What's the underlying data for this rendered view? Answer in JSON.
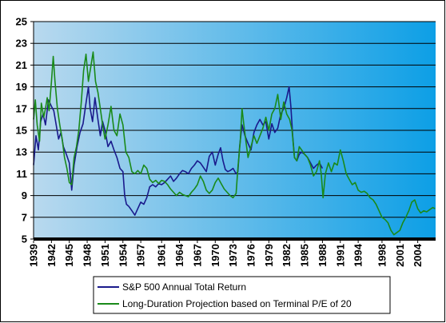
{
  "chart_data": {
    "type": "line",
    "title": "",
    "xlabel": "",
    "ylabel": "",
    "xlim": [
      1939,
      2006.5
    ],
    "ylim": [
      5,
      25
    ],
    "y_ticks": [
      5,
      7,
      9,
      11,
      13,
      15,
      17,
      19,
      21,
      23,
      25
    ],
    "x_ticks": [
      "1939",
      "1942",
      "1945",
      "1948",
      "1951",
      "1954",
      "1957",
      "1961",
      "1964",
      "1967",
      "1970",
      "1973",
      "1976",
      "1979",
      "1982",
      "1985",
      "1988",
      "1991",
      "1994",
      "1998",
      "2001",
      "2004"
    ],
    "x_tick_values": [
      1939,
      1942,
      1945,
      1948,
      1951,
      1954,
      1957,
      1960.5,
      1963.5,
      1966.5,
      1969.5,
      1972.5,
      1975.5,
      1978.5,
      1981.5,
      1984.5,
      1987.5,
      1990.5,
      1993.5,
      1997.5,
      2000.5,
      2003.5
    ],
    "grid": "horizontal",
    "legend_position": "bottom",
    "series": [
      {
        "name": "S&P 500 Annual Total Return",
        "color": "#1a1a8c",
        "points": [
          [
            1939,
            11.8
          ],
          [
            1939.4,
            14.5
          ],
          [
            1939.8,
            13.2
          ],
          [
            1940.2,
            15.8
          ],
          [
            1940.6,
            16.5
          ],
          [
            1941,
            15.5
          ],
          [
            1941.5,
            17.8
          ],
          [
            1942,
            17.2
          ],
          [
            1942.4,
            16.8
          ],
          [
            1942.8,
            15.5
          ],
          [
            1943.2,
            14.2
          ],
          [
            1943.6,
            14.8
          ],
          [
            1944,
            13.5
          ],
          [
            1944.5,
            12.8
          ],
          [
            1945,
            12.0
          ],
          [
            1945.4,
            9.5
          ],
          [
            1945.8,
            11.8
          ],
          [
            1946.3,
            13.5
          ],
          [
            1946.8,
            14.8
          ],
          [
            1947.3,
            15.6
          ],
          [
            1947.8,
            17.5
          ],
          [
            1948.2,
            19.0
          ],
          [
            1948.5,
            17.0
          ],
          [
            1948.9,
            15.8
          ],
          [
            1949.3,
            18.0
          ],
          [
            1949.8,
            16.0
          ],
          [
            1950.2,
            14.5
          ],
          [
            1950.6,
            15.8
          ],
          [
            1951,
            15.0
          ],
          [
            1951.5,
            13.5
          ],
          [
            1952,
            14.0
          ],
          [
            1952.5,
            13.2
          ],
          [
            1953,
            12.5
          ],
          [
            1953.5,
            11.5
          ],
          [
            1954,
            11.2
          ],
          [
            1954.3,
            9.0
          ],
          [
            1954.6,
            8.2
          ],
          [
            1955,
            8.0
          ],
          [
            1955.5,
            7.6
          ],
          [
            1956,
            7.2
          ],
          [
            1956.5,
            7.8
          ],
          [
            1957,
            8.4
          ],
          [
            1957.5,
            8.2
          ],
          [
            1958,
            8.8
          ],
          [
            1958.5,
            9.8
          ],
          [
            1959,
            10.0
          ],
          [
            1959.5,
            9.8
          ],
          [
            1960,
            10.1
          ],
          [
            1960.5,
            10.0
          ],
          [
            1961,
            10.2
          ],
          [
            1961.5,
            10.5
          ],
          [
            1962,
            10.8
          ],
          [
            1962.5,
            10.3
          ],
          [
            1963,
            10.6
          ],
          [
            1963.5,
            11.0
          ],
          [
            1964,
            11.3
          ],
          [
            1964.5,
            11.2
          ],
          [
            1965,
            11.0
          ],
          [
            1965.5,
            11.5
          ],
          [
            1966,
            11.8
          ],
          [
            1966.5,
            12.2
          ],
          [
            1967,
            12.0
          ],
          [
            1967.5,
            11.6
          ],
          [
            1968,
            11.2
          ],
          [
            1968.5,
            12.6
          ],
          [
            1969,
            13.0
          ],
          [
            1969.5,
            11.8
          ],
          [
            1970,
            12.8
          ],
          [
            1970.4,
            13.4
          ],
          [
            1970.8,
            12.2
          ],
          [
            1971.2,
            11.4
          ],
          [
            1971.6,
            11.2
          ],
          [
            1972,
            11.3
          ],
          [
            1972.5,
            11.5
          ],
          [
            1973,
            11.0
          ],
          [
            1973.3,
            11.2
          ],
          [
            1973.6,
            13.5
          ],
          [
            1974,
            15.5
          ],
          [
            1974.5,
            14.5
          ],
          [
            1975,
            13.8
          ],
          [
            1975.5,
            13.2
          ],
          [
            1976,
            14.8
          ],
          [
            1976.5,
            15.5
          ],
          [
            1977,
            16.0
          ],
          [
            1977.5,
            15.5
          ],
          [
            1978,
            15.8
          ],
          [
            1978.5,
            14.2
          ],
          [
            1979,
            15.6
          ],
          [
            1979.5,
            14.8
          ],
          [
            1980,
            15.2
          ],
          [
            1980.5,
            16.5
          ],
          [
            1981,
            17.0
          ],
          [
            1981.5,
            18.0
          ],
          [
            1981.9,
            19.0
          ],
          [
            1982.2,
            17.2
          ],
          [
            1982.5,
            14.5
          ],
          [
            1982.8,
            12.5
          ],
          [
            1983.2,
            12.2
          ],
          [
            1983.6,
            12.8
          ],
          [
            1984,
            13.0
          ],
          [
            1984.5,
            12.8
          ],
          [
            1985,
            12.5
          ],
          [
            1985.5,
            12.0
          ],
          [
            1986,
            11.5
          ],
          [
            1986.5,
            11.8
          ],
          [
            1987,
            12.0
          ],
          [
            1987.5,
            11.5
          ]
        ]
      },
      {
        "name": "Long-Duration Projection based on Terminal P/E of 20",
        "color": "#1a8a1a",
        "points": [
          [
            1939,
            16.0
          ],
          [
            1939.3,
            17.8
          ],
          [
            1939.6,
            15.5
          ],
          [
            1940,
            14.0
          ],
          [
            1940.3,
            17.5
          ],
          [
            1940.7,
            16.2
          ],
          [
            1941,
            17.0
          ],
          [
            1941.3,
            18.0
          ],
          [
            1941.6,
            16.8
          ],
          [
            1942,
            19.5
          ],
          [
            1942.3,
            21.8
          ],
          [
            1942.6,
            19.5
          ],
          [
            1943,
            17.0
          ],
          [
            1943.4,
            15.5
          ],
          [
            1943.8,
            14.2
          ],
          [
            1944.2,
            12.5
          ],
          [
            1944.6,
            11.5
          ],
          [
            1945,
            10.2
          ],
          [
            1945.4,
            10.0
          ],
          [
            1945.8,
            12.5
          ],
          [
            1946.2,
            13.5
          ],
          [
            1946.6,
            15.0
          ],
          [
            1947,
            17.5
          ],
          [
            1947.4,
            20.5
          ],
          [
            1947.8,
            22.0
          ],
          [
            1948.2,
            19.5
          ],
          [
            1948.6,
            20.8
          ],
          [
            1949,
            22.2
          ],
          [
            1949.4,
            19.5
          ],
          [
            1949.8,
            18.5
          ],
          [
            1950.2,
            17.0
          ],
          [
            1950.6,
            15.5
          ],
          [
            1951,
            14.2
          ],
          [
            1951.5,
            15.5
          ],
          [
            1952,
            17.2
          ],
          [
            1952.5,
            15.0
          ],
          [
            1953,
            14.5
          ],
          [
            1953.5,
            16.5
          ],
          [
            1954,
            15.5
          ],
          [
            1954.5,
            13.0
          ],
          [
            1955,
            12.5
          ],
          [
            1955.5,
            11.2
          ],
          [
            1956,
            11.0
          ],
          [
            1956.5,
            11.3
          ],
          [
            1957,
            11.0
          ],
          [
            1957.5,
            11.8
          ],
          [
            1958,
            11.5
          ],
          [
            1958.5,
            10.5
          ],
          [
            1959,
            10.2
          ],
          [
            1959.5,
            10.4
          ],
          [
            1960,
            10.1
          ],
          [
            1960.5,
            10.4
          ],
          [
            1961,
            10.3
          ],
          [
            1961.5,
            10.0
          ],
          [
            1962,
            9.6
          ],
          [
            1962.5,
            9.3
          ],
          [
            1963,
            9.0
          ],
          [
            1963.5,
            9.3
          ],
          [
            1964,
            9.1
          ],
          [
            1964.5,
            9.0
          ],
          [
            1965,
            8.9
          ],
          [
            1965.5,
            9.3
          ],
          [
            1966,
            9.6
          ],
          [
            1966.5,
            10.0
          ],
          [
            1967,
            10.8
          ],
          [
            1967.5,
            10.3
          ],
          [
            1968,
            9.5
          ],
          [
            1968.5,
            9.2
          ],
          [
            1969,
            9.5
          ],
          [
            1969.5,
            10.2
          ],
          [
            1970,
            10.6
          ],
          [
            1970.5,
            10.1
          ],
          [
            1971,
            9.6
          ],
          [
            1971.5,
            9.3
          ],
          [
            1972,
            9.0
          ],
          [
            1972.5,
            8.8
          ],
          [
            1973,
            9.2
          ],
          [
            1973.3,
            11.5
          ],
          [
            1973.7,
            14.0
          ],
          [
            1974,
            17.0
          ],
          [
            1974.3,
            15.5
          ],
          [
            1974.7,
            13.8
          ],
          [
            1975,
            12.5
          ],
          [
            1975.5,
            13.5
          ],
          [
            1976,
            14.5
          ],
          [
            1976.5,
            13.8
          ],
          [
            1977,
            14.5
          ],
          [
            1977.5,
            15.2
          ],
          [
            1978,
            16.2
          ],
          [
            1978.5,
            15.0
          ],
          [
            1979,
            16.5
          ],
          [
            1979.5,
            17.0
          ],
          [
            1980,
            18.3
          ],
          [
            1980.5,
            16.0
          ],
          [
            1981,
            17.6
          ],
          [
            1981.5,
            16.5
          ],
          [
            1982,
            16.0
          ],
          [
            1982.4,
            15.0
          ],
          [
            1982.8,
            12.5
          ],
          [
            1983.2,
            12.2
          ],
          [
            1983.6,
            13.5
          ],
          [
            1984,
            13.2
          ],
          [
            1984.5,
            12.8
          ],
          [
            1985,
            12.5
          ],
          [
            1985.5,
            11.8
          ],
          [
            1986,
            10.8
          ],
          [
            1986.5,
            11.2
          ],
          [
            1987,
            12.2
          ],
          [
            1987.3,
            11.0
          ],
          [
            1987.6,
            8.8
          ],
          [
            1988,
            11.0
          ],
          [
            1988.5,
            12.0
          ],
          [
            1989,
            11.2
          ],
          [
            1989.5,
            12.0
          ],
          [
            1990,
            11.8
          ],
          [
            1990.5,
            13.2
          ],
          [
            1991,
            12.2
          ],
          [
            1991.5,
            11.0
          ],
          [
            1992,
            10.5
          ],
          [
            1992.5,
            10.0
          ],
          [
            1993,
            10.2
          ],
          [
            1993.5,
            9.5
          ],
          [
            1994,
            9.3
          ],
          [
            1994.5,
            9.4
          ],
          [
            1995,
            9.2
          ],
          [
            1995.5,
            8.8
          ],
          [
            1996,
            8.6
          ],
          [
            1996.5,
            8.2
          ],
          [
            1997,
            7.6
          ],
          [
            1997.5,
            7.0
          ],
          [
            1998,
            6.8
          ],
          [
            1998.5,
            6.5
          ],
          [
            1999,
            5.8
          ],
          [
            1999.5,
            5.4
          ],
          [
            2000,
            5.6
          ],
          [
            2000.5,
            5.8
          ],
          [
            2001,
            6.5
          ],
          [
            2001.5,
            7.0
          ],
          [
            2002,
            7.6
          ],
          [
            2002.5,
            8.4
          ],
          [
            2003,
            8.6
          ],
          [
            2003.5,
            7.8
          ],
          [
            2004,
            7.4
          ],
          [
            2004.5,
            7.6
          ],
          [
            2005,
            7.5
          ],
          [
            2005.5,
            7.7
          ],
          [
            2006,
            7.9
          ],
          [
            2006.4,
            7.8
          ]
        ]
      }
    ]
  }
}
